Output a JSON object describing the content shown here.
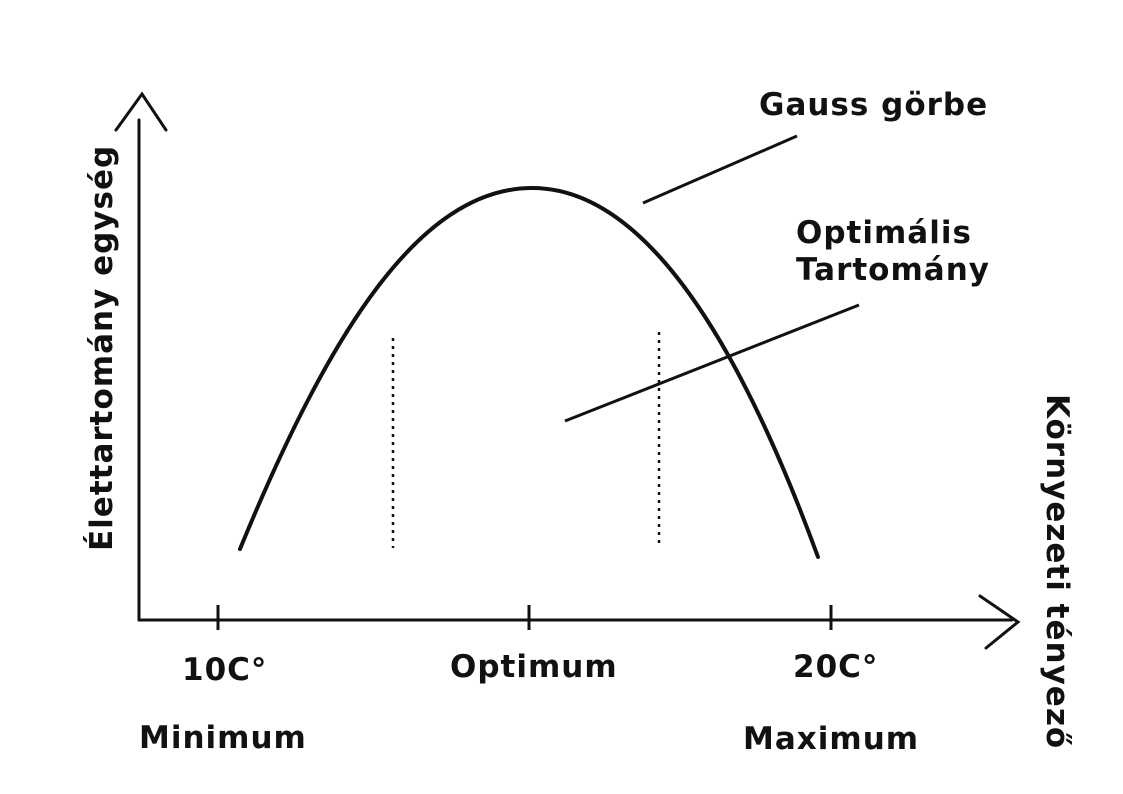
{
  "diagram": {
    "y_axis_label": "Élettartomány egység",
    "x_axis_label": "Környezeti tényező",
    "curve_label": "Gauss görbe",
    "range_label": [
      "Optimális",
      "Tartomány"
    ],
    "ticks": [
      {
        "value": "10C°",
        "caption": "Minimum"
      },
      {
        "value": "Optimum",
        "caption": ""
      },
      {
        "value": "20C°",
        "caption": "Maximum"
      }
    ],
    "colors": {
      "line": "#111111",
      "background": "#ffffff"
    }
  }
}
